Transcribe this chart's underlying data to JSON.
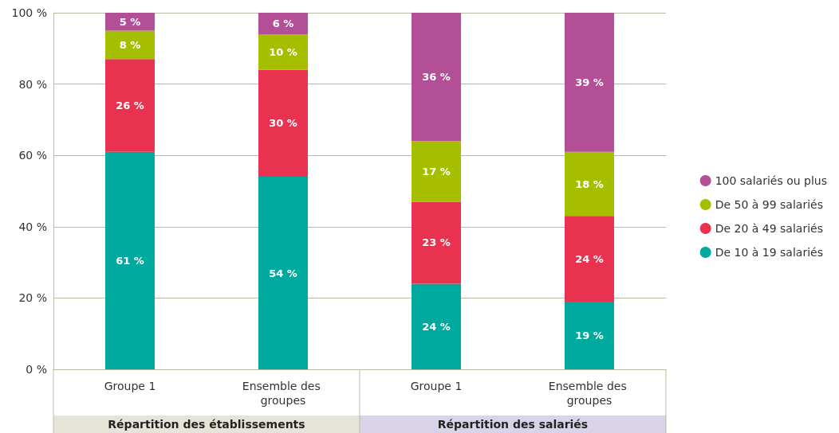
{
  "chart_data": {
    "type": "bar",
    "stacked": true,
    "categories": [
      "Groupe 1",
      "Ensemble des groupes",
      "Groupe 1",
      "Ensemble des groupes"
    ],
    "series": [
      {
        "name": "De 10 à 19 salariés",
        "color": "#00a99d",
        "values": [
          61,
          54,
          24,
          19
        ],
        "value_labels": [
          "61 %",
          "54 %",
          "24 %",
          "19 %"
        ]
      },
      {
        "name": "De 20 à 49 salariés",
        "color": "#e8324f",
        "values": [
          26,
          30,
          23,
          24
        ],
        "value_labels": [
          "26 %",
          "30 %",
          "23 %",
          "24 %"
        ]
      },
      {
        "name": "De 50 à 99 salariés",
        "color": "#a5be00",
        "values": [
          8,
          10,
          17,
          18
        ],
        "value_labels": [
          "8 %",
          "10 %",
          "17 %",
          "18 %"
        ]
      },
      {
        "name": "100 salariés ou plus",
        "color": "#b24f97",
        "values": [
          5,
          6,
          36,
          39
        ],
        "value_labels": [
          "5 %",
          "6 %",
          "36 %",
          "39 %"
        ]
      }
    ],
    "ylim": [
      0,
      100
    ],
    "yticks": [
      {
        "value": 0,
        "label": "0 %"
      },
      {
        "value": 20,
        "label": "20 %"
      },
      {
        "value": 40,
        "label": "40 %"
      },
      {
        "value": 60,
        "label": "60 %"
      },
      {
        "value": 80,
        "label": "80 %"
      },
      {
        "value": 100,
        "label": "100 %"
      }
    ],
    "grid": "y",
    "legend": "right",
    "annotations": [
      "Répartition des établissements",
      "Répartition des salariés"
    ]
  }
}
